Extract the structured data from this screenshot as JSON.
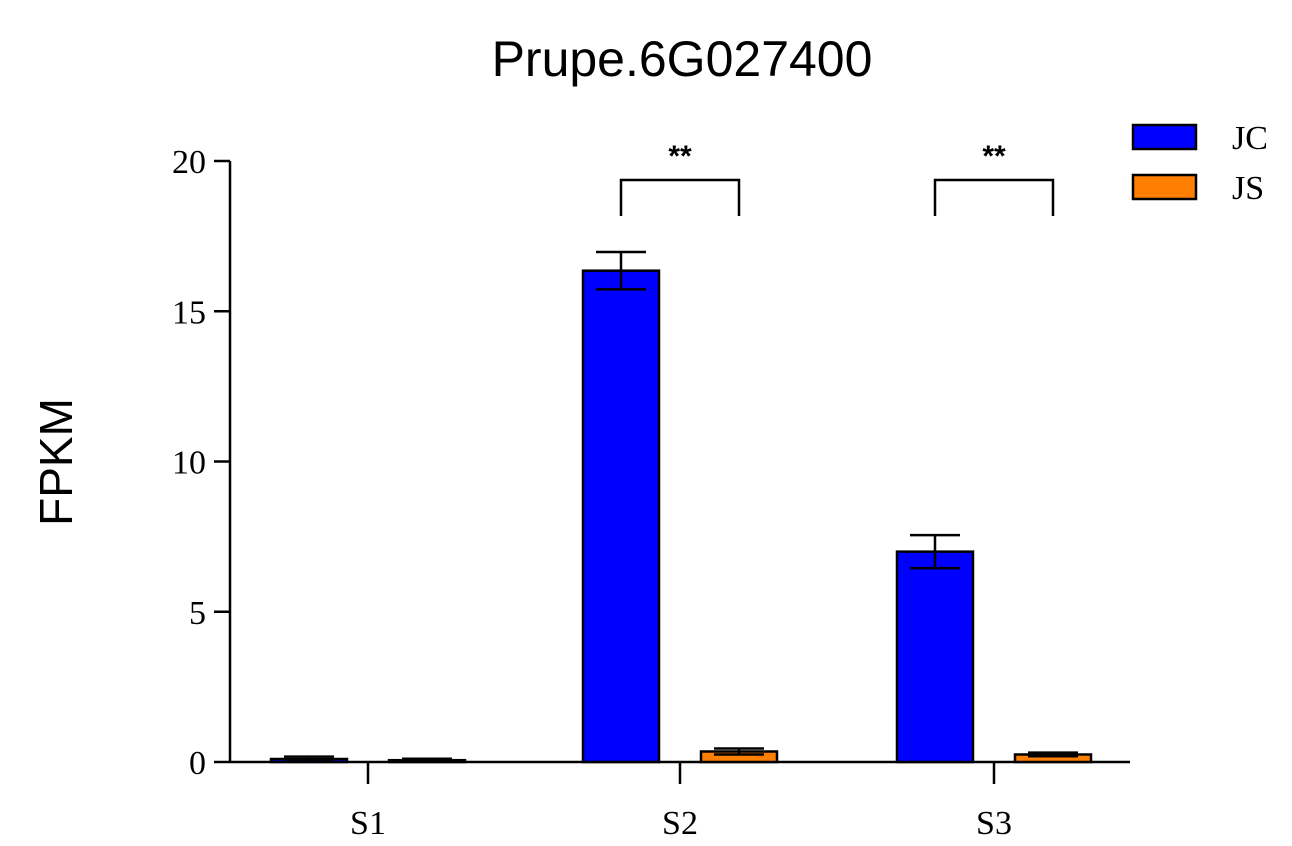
{
  "chart_data": {
    "type": "bar",
    "title": "Prupe.6G027400",
    "xlabel": "",
    "ylabel": "FPKM",
    "categories": [
      "S1",
      "S2",
      "S3"
    ],
    "ylim": [
      0,
      20
    ],
    "yticks": [
      0,
      5,
      10,
      15,
      20
    ],
    "grid": false,
    "legend_position": "top-right",
    "series": [
      {
        "name": "JC",
        "color": "#0000FF",
        "values": [
          0.1,
          16.35,
          7.0
        ],
        "errors": [
          0.08,
          0.62,
          0.55
        ]
      },
      {
        "name": "JS",
        "color": "#FF8000",
        "values": [
          0.06,
          0.35,
          0.25
        ],
        "errors": [
          0.05,
          0.1,
          0.06
        ]
      }
    ],
    "annotations": [
      {
        "category": "S2",
        "text": "**"
      },
      {
        "category": "S3",
        "text": "**"
      }
    ]
  }
}
